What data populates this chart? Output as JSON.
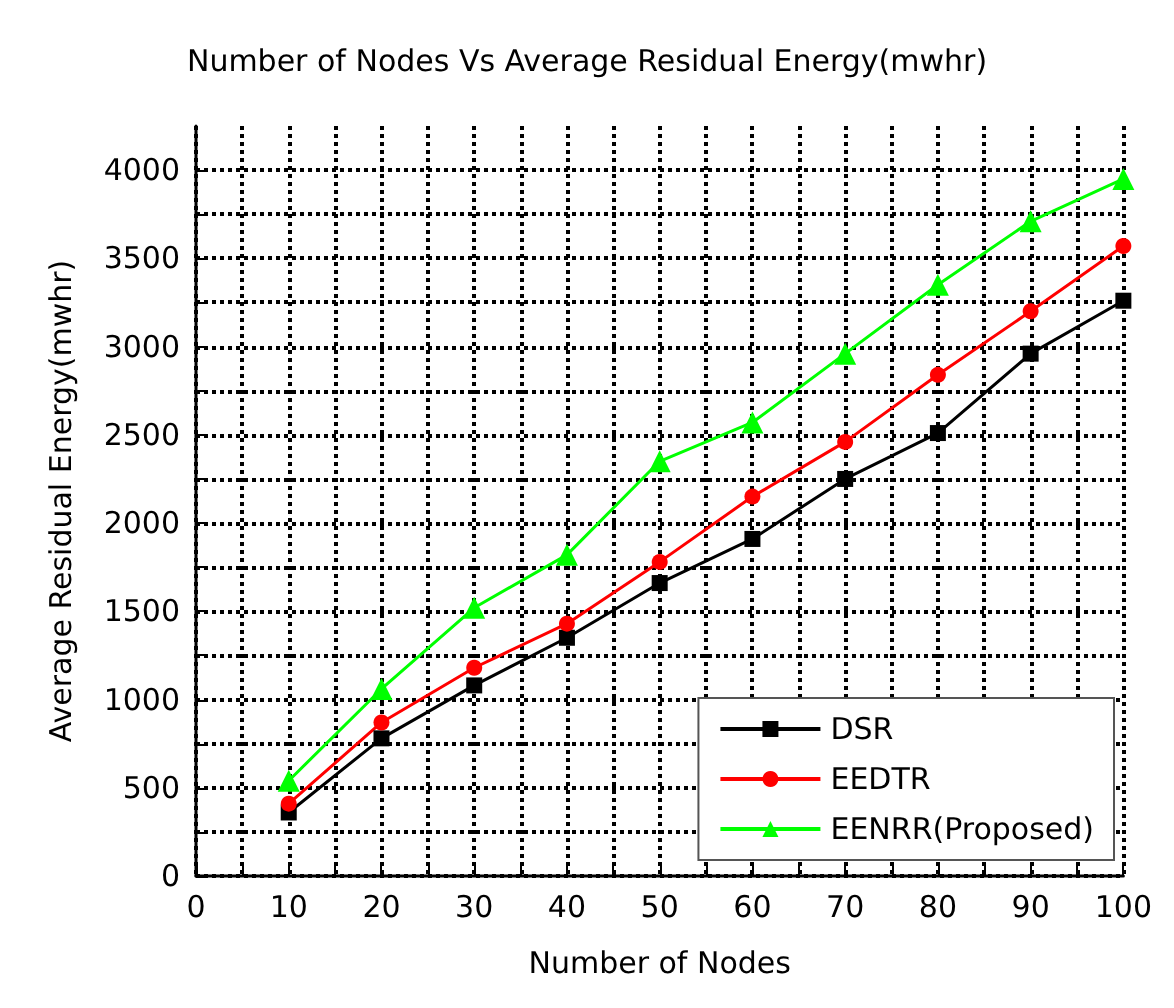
{
  "chart_data": {
    "type": "line",
    "title": "Number of Nodes Vs Average Residual Energy(mwhr)",
    "xlabel": "Number of Nodes",
    "ylabel": "Average Residual Energy(mwhr)",
    "x": [
      10,
      20,
      30,
      40,
      50,
      60,
      70,
      80,
      90,
      100
    ],
    "series": [
      {
        "name": "DSR",
        "color": "#000000",
        "marker": "square",
        "values": [
          360,
          780,
          1080,
          1350,
          1660,
          1910,
          2250,
          2510,
          2960,
          3260
        ]
      },
      {
        "name": "EEDTR",
        "color": "#ff0000",
        "marker": "circle",
        "values": [
          410,
          870,
          1180,
          1430,
          1780,
          2150,
          2460,
          2840,
          3200,
          3570
        ]
      },
      {
        "name": "EENRR(Proposed)",
        "color": "#00ff00",
        "marker": "triangle",
        "values": [
          540,
          1060,
          1520,
          1820,
          2350,
          2570,
          2960,
          3350,
          3710,
          3950
        ]
      }
    ],
    "xlim": [
      0,
      100
    ],
    "xticks": [
      0,
      10,
      20,
      30,
      40,
      50,
      60,
      70,
      80,
      90,
      100
    ],
    "ylim": [
      0,
      4250
    ],
    "yticks": [
      0,
      500,
      1000,
      1500,
      2000,
      2500,
      3000,
      3500,
      4000
    ],
    "grid": true,
    "line_style": "solid",
    "legend": "bottom right"
  }
}
